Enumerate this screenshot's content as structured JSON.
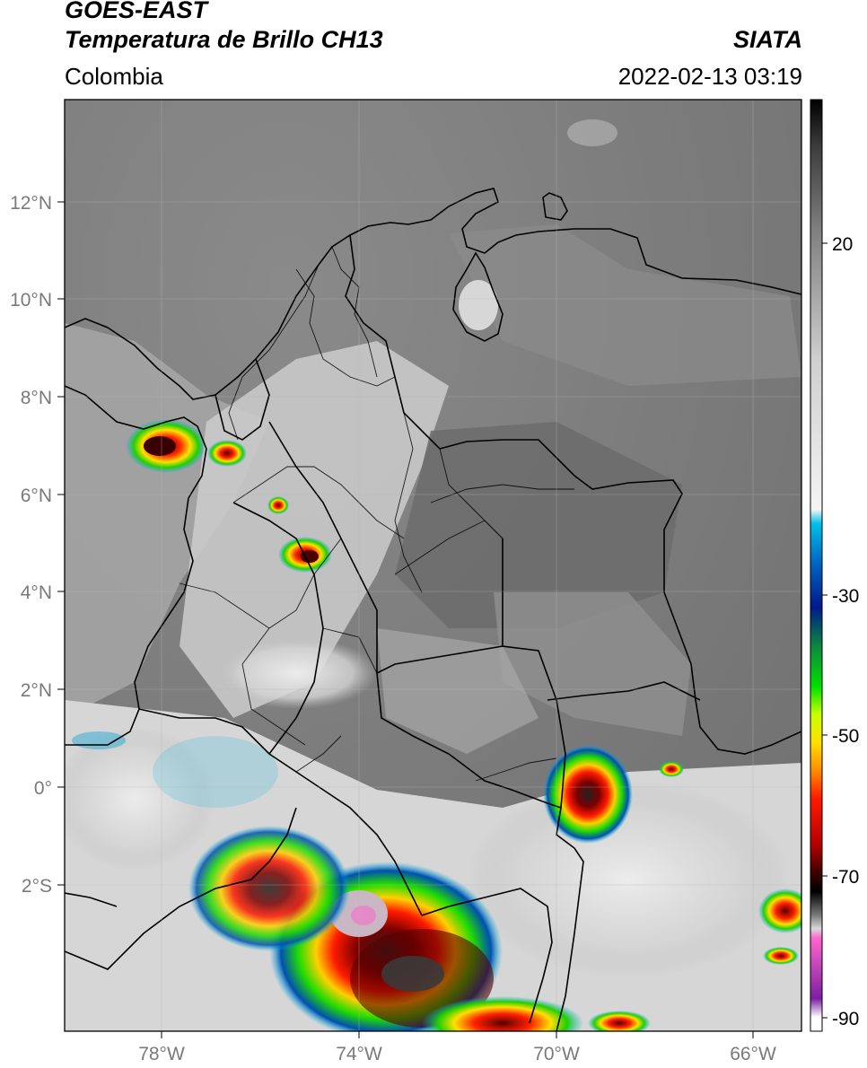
{
  "header": {
    "satellite": "GOES-EAST",
    "product": "Temperatura de Brillo CH13",
    "region": "Colombia",
    "source": "SIATA",
    "datetime": "2022-02-13 03:19"
  },
  "axes": {
    "lat_labels": [
      "12°N",
      "10°N",
      "8°N",
      "6°N",
      "4°N",
      "2°N",
      "0°",
      "2°S"
    ],
    "lon_labels": [
      "78°W",
      "74°W",
      "70°W",
      "66°W"
    ]
  },
  "colorbar": {
    "tick_labels": [
      "20",
      "-30",
      "-50",
      "-70",
      "-90"
    ],
    "stops": [
      "#000000",
      "#3c3c3c",
      "#7f7f7f",
      "#cfcfcf",
      "#f4f4f4",
      "#00c0e8",
      "#0060c0",
      "#001a8a",
      "#0d8f3a",
      "#00e000",
      "#c8ff00",
      "#ffe000",
      "#ff8c00",
      "#ff1a00",
      "#b40000",
      "#3c0000",
      "#000000",
      "#777777",
      "#d8d8d8",
      "#ff66cc",
      "#7b1fa2",
      "#ffffff"
    ]
  },
  "colors": {
    "background_gray": "#7d7d7d",
    "land_gray": "#a7a7a7",
    "warm_land": "#6a6a6a",
    "cloud_white": "#e6e6e6",
    "border": "#000000"
  }
}
